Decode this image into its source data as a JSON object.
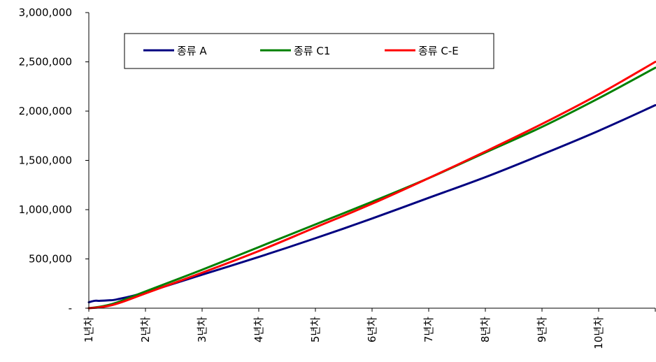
{
  "chart_data": {
    "type": "line",
    "categories": [
      "1년차",
      "2년차",
      "3년차",
      "4년차",
      "5년차",
      "6년차",
      "7년차",
      "8년차",
      "9년차",
      "10년차"
    ],
    "y_tick_labels": [
      "-",
      "500,000",
      "1,000,000",
      "1,500,000",
      "2,000,000",
      "2,500,000",
      "3,000,000"
    ],
    "y_ticks": [
      0,
      500000,
      1000000,
      1500000,
      2000000,
      2500000,
      3000000
    ],
    "ylim": [
      0,
      3000000
    ],
    "xlim": [
      1,
      11
    ],
    "grid": false,
    "legend_position": "top",
    "series": [
      {
        "name": "종류 A",
        "color": "#000080",
        "x": [
          1.0,
          1.1,
          1.2,
          1.35,
          1.5,
          2.0,
          3.0,
          4.0,
          5.0,
          6.0,
          7.0,
          8.0,
          9.0,
          10.0,
          11.0
        ],
        "values": [
          60000,
          75000,
          75000,
          80000,
          90000,
          160000,
          340000,
          520000,
          710000,
          910000,
          1120000,
          1330000,
          1560000,
          1800000,
          2060000
        ]
      },
      {
        "name": "종류 C1",
        "color": "#008000",
        "x": [
          1.0,
          1.2,
          1.4,
          1.6,
          2.0,
          3.0,
          4.0,
          5.0,
          6.0,
          7.0,
          8.0,
          9.0,
          10.0,
          11.0
        ],
        "values": [
          0,
          15000,
          40000,
          80000,
          170000,
          390000,
          620000,
          850000,
          1080000,
          1320000,
          1580000,
          1840000,
          2130000,
          2440000
        ]
      },
      {
        "name": "종류 C-E",
        "color": "#ff0000",
        "x": [
          1.0,
          1.2,
          1.4,
          1.6,
          2.0,
          3.0,
          4.0,
          5.0,
          6.0,
          7.0,
          8.0,
          9.0,
          10.0,
          11.0
        ],
        "values": [
          0,
          10000,
          30000,
          65000,
          150000,
          360000,
          580000,
          820000,
          1060000,
          1320000,
          1590000,
          1870000,
          2170000,
          2500000
        ]
      }
    ]
  }
}
